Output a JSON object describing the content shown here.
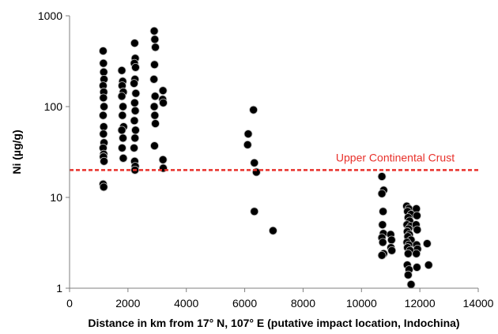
{
  "chart_data": {
    "type": "scatter",
    "title": "",
    "xlabel": "Distance in km from 17° N, 107° E (putative impact location, Indochina)",
    "ylabel": "Ni (µg/g)",
    "xlim": [
      0,
      14000
    ],
    "ylim": [
      1,
      1000
    ],
    "yscale": "log",
    "grid": false,
    "x_ticks": [
      0,
      2000,
      4000,
      6000,
      8000,
      10000,
      12000,
      14000
    ],
    "x_tick_labels": [
      "0",
      "2000",
      "4000",
      "6000",
      "8000",
      "10000",
      "12000",
      "14000"
    ],
    "y_ticks": [
      1,
      10,
      100,
      1000
    ],
    "y_tick_labels": [
      "1",
      "10",
      "100",
      "1000"
    ],
    "reference_line": {
      "label": "Upper Continental Crust",
      "y": 20,
      "color": "#e8302a",
      "style": "dashed"
    },
    "marker_color": "#000000",
    "points": [
      [
        1150,
        410
      ],
      [
        1160,
        300
      ],
      [
        1170,
        240
      ],
      [
        1180,
        200
      ],
      [
        1150,
        170
      ],
      [
        1170,
        145
      ],
      [
        1160,
        125
      ],
      [
        1180,
        100
      ],
      [
        1150,
        80
      ],
      [
        1170,
        60
      ],
      [
        1160,
        50
      ],
      [
        1180,
        40
      ],
      [
        1150,
        35
      ],
      [
        1170,
        30
      ],
      [
        1160,
        28
      ],
      [
        1180,
        25
      ],
      [
        1150,
        14
      ],
      [
        1170,
        13
      ],
      [
        1790,
        250
      ],
      [
        1820,
        190
      ],
      [
        1800,
        170
      ],
      [
        1840,
        145
      ],
      [
        1790,
        130
      ],
      [
        1830,
        100
      ],
      [
        1810,
        80
      ],
      [
        1850,
        60
      ],
      [
        1790,
        55
      ],
      [
        1830,
        45
      ],
      [
        1800,
        35
      ],
      [
        1840,
        27
      ],
      [
        2230,
        500
      ],
      [
        2250,
        340
      ],
      [
        2220,
        300
      ],
      [
        2260,
        270
      ],
      [
        2240,
        200
      ],
      [
        2210,
        180
      ],
      [
        2270,
        140
      ],
      [
        2230,
        110
      ],
      [
        2250,
        90
      ],
      [
        2220,
        70
      ],
      [
        2260,
        55
      ],
      [
        2240,
        45
      ],
      [
        2210,
        35
      ],
      [
        2230,
        25
      ],
      [
        2250,
        22
      ],
      [
        2240,
        20
      ],
      [
        2900,
        680
      ],
      [
        2920,
        550
      ],
      [
        2940,
        450
      ],
      [
        2910,
        290
      ],
      [
        2890,
        200
      ],
      [
        2930,
        130
      ],
      [
        2900,
        100
      ],
      [
        2920,
        80
      ],
      [
        2940,
        65
      ],
      [
        2910,
        37
      ],
      [
        3200,
        150
      ],
      [
        3190,
        120
      ],
      [
        3210,
        110
      ],
      [
        3200,
        26
      ],
      [
        3210,
        21
      ],
      [
        6120,
        50
      ],
      [
        6100,
        38
      ],
      [
        6300,
        92
      ],
      [
        6330,
        24
      ],
      [
        6400,
        19
      ],
      [
        6330,
        7
      ],
      [
        6970,
        4.3
      ],
      [
        10700,
        17
      ],
      [
        10760,
        12
      ],
      [
        10700,
        11
      ],
      [
        10740,
        7
      ],
      [
        10720,
        5
      ],
      [
        10750,
        4
      ],
      [
        10700,
        3.6
      ],
      [
        10730,
        3.2
      ],
      [
        10760,
        2.4
      ],
      [
        10700,
        2.3
      ],
      [
        11000,
        3.9
      ],
      [
        11030,
        3.4
      ],
      [
        11010,
        2.8
      ],
      [
        11040,
        2.6
      ],
      [
        11550,
        8
      ],
      [
        11620,
        7.5
      ],
      [
        11580,
        7
      ],
      [
        11700,
        6.5
      ],
      [
        11600,
        6
      ],
      [
        11650,
        5.5
      ],
      [
        11560,
        5
      ],
      [
        11680,
        4.8
      ],
      [
        11610,
        4.5
      ],
      [
        11570,
        4.2
      ],
      [
        11640,
        3.9
      ],
      [
        11590,
        3.7
      ],
      [
        11700,
        3.4
      ],
      [
        11560,
        3.2
      ],
      [
        11620,
        3
      ],
      [
        11580,
        2.8
      ],
      [
        11660,
        2.6
      ],
      [
        11600,
        2.4
      ],
      [
        11570,
        1.8
      ],
      [
        11630,
        1.6
      ],
      [
        11600,
        1.4
      ],
      [
        11700,
        1.1
      ],
      [
        11880,
        7.5
      ],
      [
        11900,
        6.3
      ],
      [
        11870,
        5
      ],
      [
        11910,
        4.4
      ],
      [
        11890,
        3
      ],
      [
        11920,
        2.7
      ],
      [
        11880,
        2.4
      ],
      [
        11900,
        1.7
      ],
      [
        12250,
        3.1
      ],
      [
        12300,
        1.8
      ]
    ]
  }
}
